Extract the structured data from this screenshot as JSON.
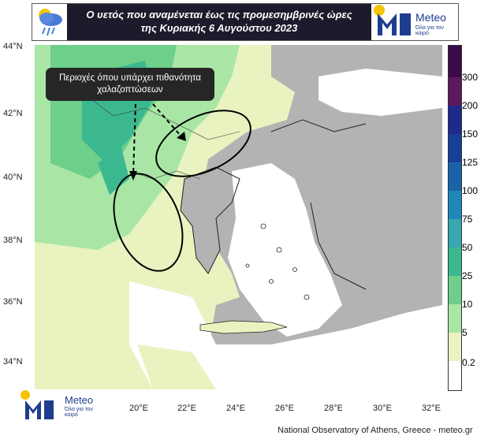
{
  "header": {
    "title_line1": "Ο υετός που αναμένεται έως τις προμεσημβρινές ώρες",
    "title_line2": "της Κυριακής 6 Αυγούστου 2023",
    "icon": "rain-cloud-icon"
  },
  "logo": {
    "name": "Meteo",
    "tagline": "Όλα για τον καιρό",
    "accent_colors": [
      "#1e3d8f",
      "#f5c400"
    ]
  },
  "callout": {
    "text_line1": "Περιοχές όπου υπάρχει πιθανότητα",
    "text_line2": "χαλαζοπτώσεων"
  },
  "axes": {
    "lat_labels": [
      "44°N",
      "42°N",
      "40°N",
      "38°N",
      "36°N",
      "34°N"
    ],
    "lon_labels": [
      "20°E",
      "22°E",
      "24°E",
      "26°E",
      "28°E",
      "30°E",
      "32°E"
    ]
  },
  "colorbar": {
    "labels": [
      "300",
      "200",
      "150",
      "125",
      "100",
      "75",
      "50",
      "25",
      "10",
      "5",
      "0.2"
    ],
    "colors": [
      "#3a0a4a",
      "#5c1a5c",
      "#1c2a8a",
      "#173f9a",
      "#1b63a8",
      "#1e88b8",
      "#36a8b0",
      "#3bb890",
      "#6dcf8a",
      "#a9e6a6",
      "#e8f3c0",
      "#ffffff"
    ]
  },
  "map_colors": {
    "land_gray": "#b3b3b3",
    "sea": "#ffffff",
    "precip_light": "#e8f3c0",
    "precip_mid": "#a9e6a6",
    "precip_high": "#3bb890"
  },
  "credit": "National Observatory of Athens, Greece - meteo.gr"
}
